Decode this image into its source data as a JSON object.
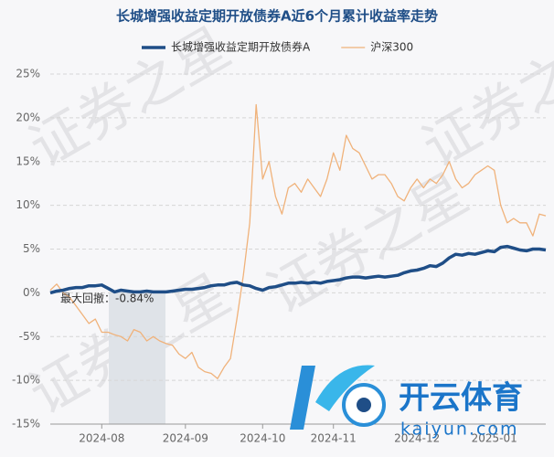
{
  "chart_data": {
    "type": "line",
    "title": "长城增强收益定期开放债券A近6个月累计收益率走势",
    "categories": [
      null,
      null,
      null,
      null,
      null,
      null,
      null,
      null,
      "2024-08",
      null,
      null,
      null,
      null,
      null,
      null,
      null,
      null,
      null,
      null,
      null,
      null,
      "2024-09",
      null,
      null,
      null,
      null,
      null,
      null,
      null,
      null,
      null,
      null,
      null,
      "2024-10",
      null,
      null,
      null,
      null,
      null,
      null,
      null,
      null,
      null,
      null,
      "2024-11",
      null,
      null,
      null,
      null,
      null,
      null,
      null,
      null,
      null,
      null,
      null,
      null,
      "2024-12",
      null,
      null,
      null,
      null,
      null,
      null,
      null,
      null,
      null,
      null,
      null,
      "2025-01",
      null,
      null,
      null,
      null,
      null,
      null,
      null,
      null
    ],
    "series": [
      {
        "name": "长城增强收益定期开放债券A",
        "color": "#1f4e87",
        "width": 3.5,
        "values": [
          0,
          0.2,
          0.3,
          0.5,
          0.6,
          0.6,
          0.8,
          0.8,
          0.9,
          0.5,
          0.1,
          0.3,
          0.2,
          0.1,
          0.1,
          0.2,
          0.1,
          0.1,
          0.1,
          0.2,
          0.3,
          0.4,
          0.4,
          0.5,
          0.6,
          0.8,
          0.9,
          0.9,
          1.1,
          1.2,
          0.9,
          0.8,
          0.5,
          0.3,
          0.6,
          0.7,
          0.9,
          1.1,
          1.1,
          1.2,
          1.1,
          1.2,
          1.1,
          1.3,
          1.4,
          1.5,
          1.7,
          1.8,
          1.8,
          1.7,
          1.8,
          1.9,
          1.8,
          1.9,
          2.0,
          2.3,
          2.5,
          2.6,
          2.8,
          3.1,
          3.0,
          3.4,
          4.0,
          4.4,
          4.3,
          4.5,
          4.4,
          4.6,
          4.8,
          4.7,
          5.2,
          5.3,
          5.1,
          4.9,
          4.8,
          5.0,
          5.0,
          4.9
        ]
      },
      {
        "name": "沪深300",
        "color": "#f0b27a",
        "width": 1.3,
        "values": [
          0.3,
          1,
          0,
          -0.5,
          -1.5,
          -2.5,
          -3.5,
          -3,
          -4.5,
          -4.5,
          -4.8,
          -5,
          -5.5,
          -4.2,
          -4.5,
          -5.5,
          -5,
          -5.5,
          -5.8,
          -6,
          -7,
          -7.5,
          -6.8,
          -8.5,
          -9,
          -9.2,
          -9.8,
          -8.5,
          -7.5,
          -3,
          2,
          8,
          21.5,
          13,
          15,
          11,
          9,
          12,
          12.5,
          11.5,
          13,
          12,
          11,
          13,
          16,
          14,
          18,
          16.5,
          16,
          14.5,
          13,
          13.5,
          13.5,
          12.5,
          11,
          10.5,
          12,
          13,
          12,
          13,
          12.5,
          13.5,
          15,
          13,
          12,
          12.5,
          13.5,
          14,
          14.5,
          14,
          10,
          8,
          8.5,
          8,
          8,
          6.5,
          9,
          8.8
        ]
      }
    ],
    "ylim": [
      -15,
      25
    ],
    "yticks": [
      {
        "value": -15,
        "label": "-15%"
      },
      {
        "value": -10,
        "label": "-10%"
      },
      {
        "value": -5,
        "label": "-5%"
      },
      {
        "value": 0,
        "label": "0%"
      },
      {
        "value": 5,
        "label": "5%"
      },
      {
        "value": 10,
        "label": "10%"
      },
      {
        "value": 15,
        "label": "15%"
      },
      {
        "value": 20,
        "label": "20%"
      },
      {
        "value": 25,
        "label": "25%"
      }
    ],
    "grid": true,
    "legend": "top",
    "annotation": "最大回撤：-0.84%",
    "watermark": "证券之星",
    "logo": {
      "name": "开云体育",
      "url": "kaiyun.com"
    }
  }
}
